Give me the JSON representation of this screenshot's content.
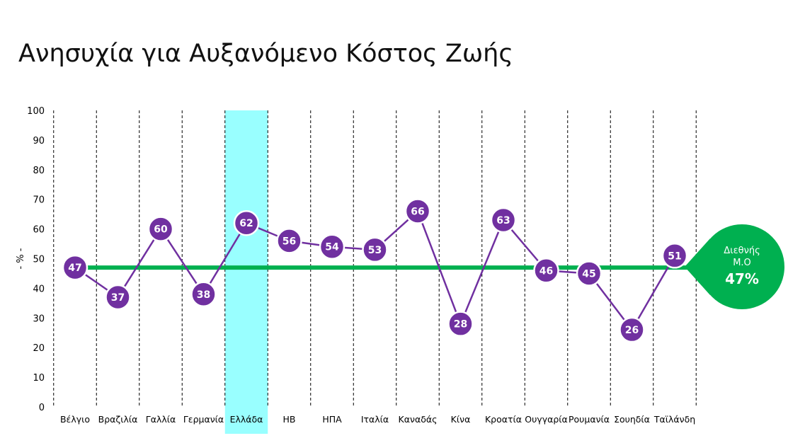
{
  "title": "Ανησυχία για Αυξανόμενο Κόστος Ζωής",
  "colors": {
    "line": "#7030A0",
    "average": "#00B050",
    "highlight": "#99FFFF",
    "grid": "#000000"
  },
  "callout": {
    "line1": "Διεθνής",
    "line2": "Μ.Ο",
    "value": "47%"
  },
  "chart_data": {
    "type": "line",
    "title": "Ανησυχία για Αυξανόμενο Κόστος Ζωής",
    "ylabel": "- % -",
    "ylim": [
      0,
      100
    ],
    "yticks": [
      0,
      10,
      20,
      30,
      40,
      50,
      60,
      70,
      80,
      90,
      100
    ],
    "categories": [
      "Βέλγιο",
      "Βραζιλία",
      "Γαλλία",
      "Γερμανία",
      "Ελλάδα",
      "ΗΒ",
      "ΗΠΑ",
      "Ιταλία",
      "Καναδάς",
      "Κίνα",
      "Κροατία",
      "Ουγγαρία",
      "Ρουμανία",
      "Σουηδία",
      "Ταϊλάνδη"
    ],
    "values": [
      47,
      37,
      60,
      38,
      62,
      56,
      54,
      53,
      66,
      28,
      63,
      46,
      45,
      26,
      51
    ],
    "highlighted_category": "Ελλάδα",
    "average": {
      "label": "Διεθνής Μ.Ο",
      "value": 47
    },
    "grid": "vertical dashed"
  }
}
